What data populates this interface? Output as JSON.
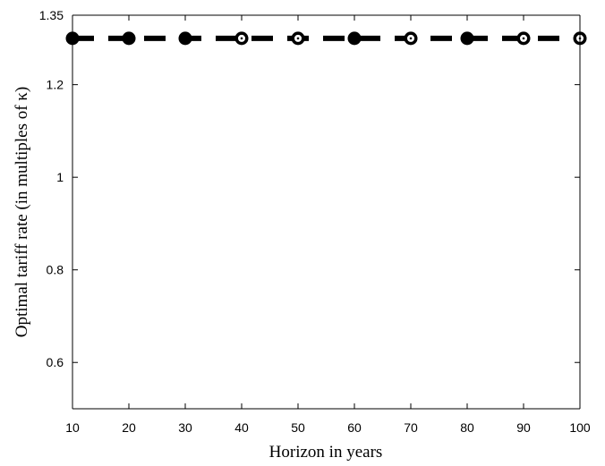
{
  "chart_data": {
    "type": "line",
    "title": "",
    "xlabel": "Horizon in years",
    "ylabel": "Optimal tariff rate (in multiples of  κ)",
    "xlim": [
      10,
      100
    ],
    "ylim": [
      0.5,
      1.35
    ],
    "xticks": [
      10,
      20,
      30,
      40,
      50,
      60,
      70,
      80,
      90,
      100
    ],
    "yticks": [
      0.6,
      0.8,
      1,
      1.2,
      1.35
    ],
    "ytick_labels": [
      "0.6",
      "0.8",
      "1",
      "1.2",
      "1.35"
    ],
    "grid": false,
    "series": [
      {
        "line_style": "dashed",
        "marker": "circle",
        "color": "#000000",
        "x": [
          10,
          20,
          30,
          40,
          50,
          60,
          70,
          80,
          90,
          100
        ],
        "y": [
          1.3,
          1.3,
          1.3,
          1.3,
          1.3,
          1.3,
          1.3,
          1.3,
          1.3,
          1.3
        ],
        "marker_style": [
          "filled",
          "filled",
          "filled",
          "hollow",
          "hollow",
          "filled",
          "hollow",
          "filled",
          "hollow",
          "hollow"
        ]
      }
    ]
  }
}
